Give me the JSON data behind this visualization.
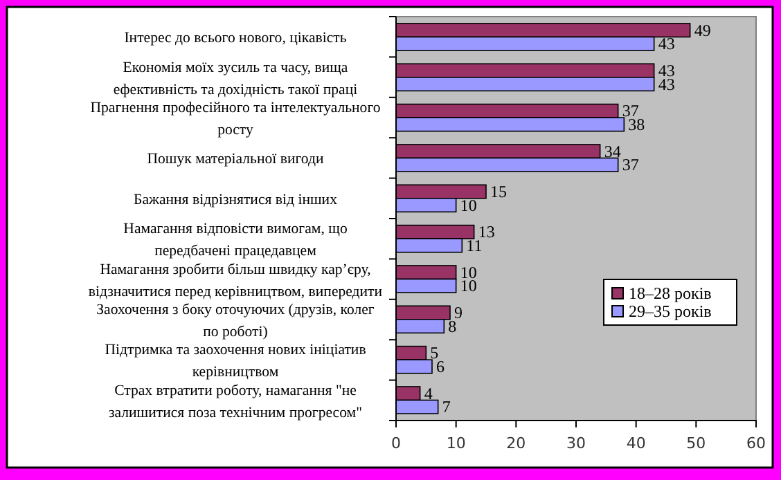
{
  "chart_data": {
    "type": "bar",
    "orientation": "horizontal",
    "categories": [
      "Інтерес до всього нового, цікавість",
      "Економія моїх зусиль та часу, вища\nефективність та дохідність такої праці",
      "Прагнення професійного та інтелектуального\nросту",
      "Пошук матеріальної вигоди",
      "Бажання відрізнятися від інших",
      "Намагання відповісти вимогам, що\nпередбачені працедавцем",
      "Намагання зробити більш швидку кар’єру,\nвідзначитися перед керівництвом, випередити",
      "Заохочення з боку оточуючих (друзів, колег\nпо роботі)",
      "Підтримка та заохочення нових ініціатив\nкерівництвом",
      "Страх  втратити роботу, намагання \"не\nзалишитися поза технічним прогресом\""
    ],
    "series": [
      {
        "name": "18–28 років",
        "color": "#993366",
        "values": [
          49,
          43,
          37,
          34,
          15,
          13,
          10,
          9,
          5,
          4
        ]
      },
      {
        "name": "29–35 років",
        "color": "#9999ff",
        "values": [
          43,
          43,
          38,
          37,
          10,
          11,
          10,
          8,
          6,
          7
        ]
      }
    ],
    "xlim": [
      0,
      60
    ],
    "xticks": [
      0,
      10,
      20,
      30,
      40,
      50,
      60
    ],
    "data_labels": true,
    "grid": false,
    "legend": "right"
  }
}
